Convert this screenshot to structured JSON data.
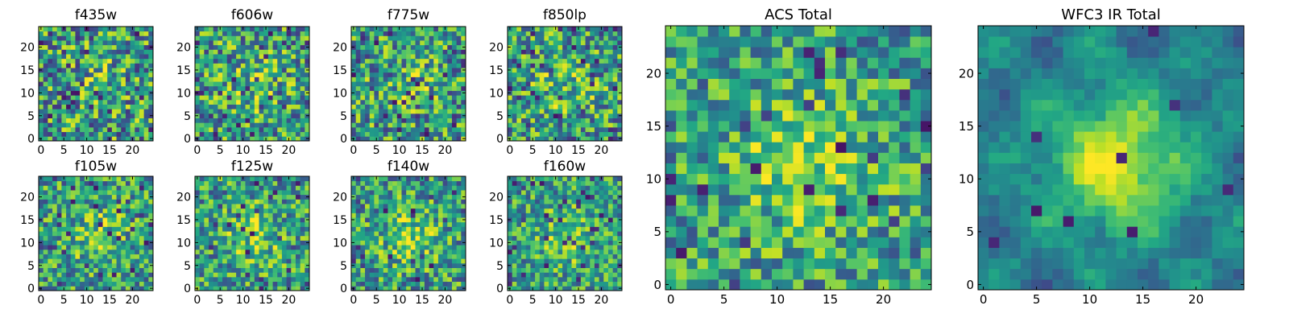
{
  "figure": {
    "background": "#ffffff",
    "colormap": "viridis",
    "grid": false
  },
  "chart_data": [
    {
      "type": "heatmap",
      "title": "f435w",
      "grid_size": 25,
      "seed": 11,
      "blob_strength": 0.1,
      "noise": 0.9,
      "dark_fraction": 0.06,
      "xlim": [
        0,
        24
      ],
      "ylim": [
        0,
        24
      ],
      "xticks": [
        0,
        5,
        10,
        15,
        20
      ],
      "yticks": [
        0,
        5,
        10,
        15,
        20
      ]
    },
    {
      "type": "heatmap",
      "title": "f606w",
      "grid_size": 25,
      "seed": 23,
      "blob_strength": 0.18,
      "noise": 0.85,
      "dark_fraction": 0.05,
      "xlim": [
        0,
        24
      ],
      "ylim": [
        0,
        24
      ],
      "xticks": [
        0,
        5,
        10,
        15,
        20
      ],
      "yticks": [
        0,
        5,
        10,
        15,
        20
      ]
    },
    {
      "type": "heatmap",
      "title": "f775w",
      "grid_size": 25,
      "seed": 37,
      "blob_strength": 0.15,
      "noise": 0.85,
      "dark_fraction": 0.05,
      "xlim": [
        0,
        24
      ],
      "ylim": [
        0,
        24
      ],
      "xticks": [
        0,
        5,
        10,
        15,
        20
      ],
      "yticks": [
        0,
        5,
        10,
        15,
        20
      ]
    },
    {
      "type": "heatmap",
      "title": "f850lp",
      "grid_size": 25,
      "seed": 41,
      "blob_strength": 0.15,
      "noise": 0.85,
      "dark_fraction": 0.06,
      "xlim": [
        0,
        24
      ],
      "ylim": [
        0,
        24
      ],
      "xticks": [
        0,
        5,
        10,
        15,
        20
      ],
      "yticks": [
        0,
        5,
        10,
        15,
        20
      ]
    },
    {
      "type": "heatmap",
      "title": "f105w",
      "grid_size": 25,
      "seed": 53,
      "blob_strength": 0.22,
      "noise": 0.75,
      "dark_fraction": 0.04,
      "xlim": [
        0,
        24
      ],
      "ylim": [
        0,
        24
      ],
      "xticks": [
        0,
        5,
        10,
        15,
        20
      ],
      "yticks": [
        0,
        5,
        10,
        15,
        20
      ]
    },
    {
      "type": "heatmap",
      "title": "f125w",
      "grid_size": 25,
      "seed": 67,
      "blob_strength": 0.25,
      "noise": 0.75,
      "dark_fraction": 0.04,
      "xlim": [
        0,
        24
      ],
      "ylim": [
        0,
        24
      ],
      "xticks": [
        0,
        5,
        10,
        15,
        20
      ],
      "yticks": [
        0,
        5,
        10,
        15,
        20
      ]
    },
    {
      "type": "heatmap",
      "title": "f140w",
      "grid_size": 25,
      "seed": 79,
      "blob_strength": 0.25,
      "noise": 0.75,
      "dark_fraction": 0.05,
      "xlim": [
        0,
        24
      ],
      "ylim": [
        0,
        24
      ],
      "xticks": [
        0,
        5,
        10,
        15,
        20
      ],
      "yticks": [
        0,
        5,
        10,
        15,
        20
      ]
    },
    {
      "type": "heatmap",
      "title": "f160w",
      "grid_size": 25,
      "seed": 83,
      "blob_strength": 0.25,
      "noise": 0.7,
      "dark_fraction": 0.05,
      "xlim": [
        0,
        24
      ],
      "ylim": [
        0,
        24
      ],
      "xticks": [
        0,
        5,
        10,
        15,
        20
      ],
      "yticks": [
        0,
        5,
        10,
        15,
        20
      ]
    },
    {
      "type": "heatmap",
      "title": "ACS Total",
      "grid_size": 25,
      "seed": 97,
      "blob_strength": 0.35,
      "noise": 0.7,
      "dark_fraction": 0.04,
      "xlim": [
        0,
        24
      ],
      "ylim": [
        0,
        24
      ],
      "xticks": [
        0,
        5,
        10,
        15,
        20
      ],
      "yticks": [
        0,
        5,
        10,
        15,
        20
      ]
    },
    {
      "type": "heatmap",
      "title": "WFC3 IR Total",
      "grid_size": 25,
      "seed": 101,
      "blob_strength": 0.55,
      "noise": 0.3,
      "dark_fraction": 0.03,
      "xlim": [
        0,
        24
      ],
      "ylim": [
        0,
        24
      ],
      "xticks": [
        0,
        5,
        10,
        15,
        20
      ],
      "yticks": [
        0,
        5,
        10,
        15,
        20
      ]
    }
  ]
}
